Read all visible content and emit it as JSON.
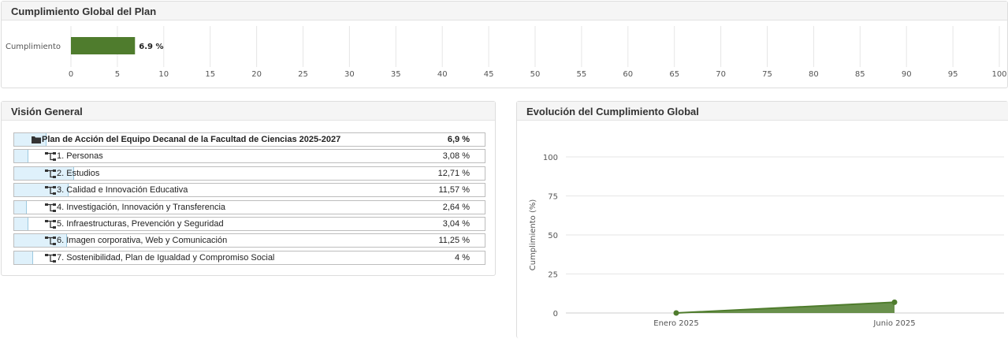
{
  "global_panel": {
    "title": "Cumplimiento Global del Plan",
    "chart_data": {
      "type": "bar",
      "orientation": "horizontal",
      "categories": [
        "Cumplimiento"
      ],
      "values": [
        6.9
      ],
      "value_label": "6.9 %",
      "xlim": [
        0,
        100
      ],
      "xticks": [
        "0",
        "5",
        "10",
        "15",
        "20",
        "25",
        "30",
        "35",
        "40",
        "45",
        "50",
        "55",
        "60",
        "65",
        "70",
        "75",
        "80",
        "85",
        "90",
        "95",
        "100"
      ],
      "grid": true,
      "bar_color": "#4f7c2d"
    }
  },
  "vision_panel": {
    "title": "Visión General",
    "rows": [
      {
        "label": "Plan de Acción del Equipo Decanal de la Facultad de Ciencias 2025-2027",
        "pct": "6,9 %",
        "value": 6.9,
        "icon": "folder-icon",
        "root": true
      },
      {
        "label": "1. Personas",
        "pct": "3,08 %",
        "value": 3.08,
        "icon": "sitemap-icon"
      },
      {
        "label": "2. Estudios",
        "pct": "12,71 %",
        "value": 12.71,
        "icon": "sitemap-icon"
      },
      {
        "label": "3. Calidad e Innovación Educativa",
        "pct": "11,57 %",
        "value": 11.57,
        "icon": "sitemap-icon"
      },
      {
        "label": "4. Investigación, Innovación y Transferencia",
        "pct": "2,64 %",
        "value": 2.64,
        "icon": "sitemap-icon"
      },
      {
        "label": "5. Infraestructuras, Prevención y Seguridad",
        "pct": "3,04 %",
        "value": 3.04,
        "icon": "sitemap-icon"
      },
      {
        "label": "6. Imagen corporativa, Web y Comunicación",
        "pct": "11,25 %",
        "value": 11.25,
        "icon": "sitemap-icon"
      },
      {
        "label": "7. Sostenibilidad, Plan de Igualdad y Compromiso Social",
        "pct": "4 %",
        "value": 4,
        "icon": "sitemap-icon"
      }
    ]
  },
  "evol_panel": {
    "title": "Evolución del Cumplimiento Global",
    "chart_data": {
      "type": "area",
      "categories": [
        "Enero 2025",
        "Junio 2025"
      ],
      "values": [
        0,
        6.9
      ],
      "ylabel": "Cumplimiento (%)",
      "ylim": [
        0,
        100
      ],
      "yticks": [
        "0",
        "25",
        "50",
        "75",
        "100"
      ],
      "grid": true,
      "color": "#4f7c2d"
    }
  }
}
